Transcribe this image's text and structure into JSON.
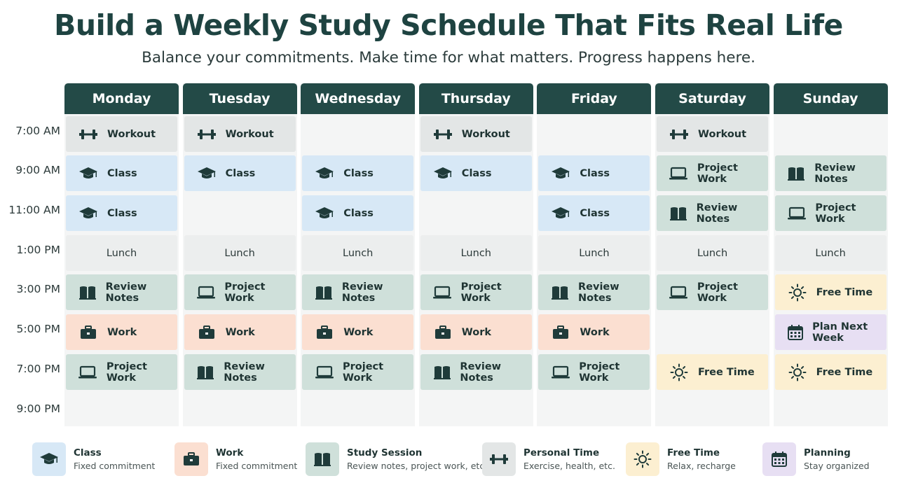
{
  "header": {
    "title": "Build a Weekly Study Schedule That Fits Real Life",
    "subtitle": "Balance your commitments. Make time for what matters. Progress happens here."
  },
  "times": [
    "7:00 AM",
    "9:00 AM",
    "11:00 AM",
    "1:00 PM",
    "3:00 PM",
    "5:00 PM",
    "7:00 PM",
    "9:00 PM"
  ],
  "days": [
    {
      "name": "Monday",
      "slots": [
        {
          "type": "personal",
          "label": "Workout",
          "icon": "dumbbell-icon"
        },
        {
          "type": "class",
          "label": "Class",
          "icon": "graduation-cap-icon"
        },
        {
          "type": "class",
          "label": "Class",
          "icon": "graduation-cap-icon"
        },
        {
          "type": "lunch",
          "label": "Lunch",
          "icon": ""
        },
        {
          "type": "study",
          "label": "Review Notes",
          "icon": "book-icon"
        },
        {
          "type": "work",
          "label": "Work",
          "icon": "briefcase-icon"
        },
        {
          "type": "study",
          "label": "Project Work",
          "icon": "laptop-icon"
        },
        {
          "type": "empty",
          "label": "",
          "icon": ""
        }
      ]
    },
    {
      "name": "Tuesday",
      "slots": [
        {
          "type": "personal",
          "label": "Workout",
          "icon": "dumbbell-icon"
        },
        {
          "type": "class",
          "label": "Class",
          "icon": "graduation-cap-icon"
        },
        {
          "type": "empty",
          "label": "",
          "icon": ""
        },
        {
          "type": "lunch",
          "label": "Lunch",
          "icon": ""
        },
        {
          "type": "study",
          "label": "Project Work",
          "icon": "laptop-icon"
        },
        {
          "type": "work",
          "label": "Work",
          "icon": "briefcase-icon"
        },
        {
          "type": "study",
          "label": "Review Notes",
          "icon": "book-icon"
        },
        {
          "type": "empty",
          "label": "",
          "icon": ""
        }
      ]
    },
    {
      "name": "Wednesday",
      "slots": [
        {
          "type": "empty",
          "label": "",
          "icon": ""
        },
        {
          "type": "class",
          "label": "Class",
          "icon": "graduation-cap-icon"
        },
        {
          "type": "class",
          "label": "Class",
          "icon": "graduation-cap-icon"
        },
        {
          "type": "lunch",
          "label": "Lunch",
          "icon": ""
        },
        {
          "type": "study",
          "label": "Review Notes",
          "icon": "book-icon"
        },
        {
          "type": "work",
          "label": "Work",
          "icon": "briefcase-icon"
        },
        {
          "type": "study",
          "label": "Project Work",
          "icon": "laptop-icon"
        },
        {
          "type": "empty",
          "label": "",
          "icon": ""
        }
      ]
    },
    {
      "name": "Thursday",
      "slots": [
        {
          "type": "personal",
          "label": "Workout",
          "icon": "dumbbell-icon"
        },
        {
          "type": "class",
          "label": "Class",
          "icon": "graduation-cap-icon"
        },
        {
          "type": "empty",
          "label": "",
          "icon": ""
        },
        {
          "type": "lunch",
          "label": "Lunch",
          "icon": ""
        },
        {
          "type": "study",
          "label": "Project Work",
          "icon": "laptop-icon"
        },
        {
          "type": "work",
          "label": "Work",
          "icon": "briefcase-icon"
        },
        {
          "type": "study",
          "label": "Review Notes",
          "icon": "book-icon"
        },
        {
          "type": "empty",
          "label": "",
          "icon": ""
        }
      ]
    },
    {
      "name": "Friday",
      "slots": [
        {
          "type": "empty",
          "label": "",
          "icon": ""
        },
        {
          "type": "class",
          "label": "Class",
          "icon": "graduation-cap-icon"
        },
        {
          "type": "class",
          "label": "Class",
          "icon": "graduation-cap-icon"
        },
        {
          "type": "lunch",
          "label": "Lunch",
          "icon": ""
        },
        {
          "type": "study",
          "label": "Review Notes",
          "icon": "book-icon"
        },
        {
          "type": "work",
          "label": "Work",
          "icon": "briefcase-icon"
        },
        {
          "type": "study",
          "label": "Project Work",
          "icon": "laptop-icon"
        },
        {
          "type": "empty",
          "label": "",
          "icon": ""
        }
      ]
    },
    {
      "name": "Saturday",
      "slots": [
        {
          "type": "personal",
          "label": "Workout",
          "icon": "dumbbell-icon"
        },
        {
          "type": "study",
          "label": "Project Work",
          "icon": "laptop-icon"
        },
        {
          "type": "study",
          "label": "Review Notes",
          "icon": "book-icon"
        },
        {
          "type": "lunch",
          "label": "Lunch",
          "icon": ""
        },
        {
          "type": "study",
          "label": "Project Work",
          "icon": "laptop-icon"
        },
        {
          "type": "empty",
          "label": "",
          "icon": ""
        },
        {
          "type": "free",
          "label": "Free Time",
          "icon": "sun-icon"
        },
        {
          "type": "empty",
          "label": "",
          "icon": ""
        }
      ]
    },
    {
      "name": "Sunday",
      "slots": [
        {
          "type": "empty",
          "label": "",
          "icon": ""
        },
        {
          "type": "study",
          "label": "Review Notes",
          "icon": "book-icon"
        },
        {
          "type": "study",
          "label": "Project Work",
          "icon": "laptop-icon"
        },
        {
          "type": "lunch",
          "label": "Lunch",
          "icon": ""
        },
        {
          "type": "free",
          "label": "Free Time",
          "icon": "sun-icon"
        },
        {
          "type": "plan",
          "label": "Plan Next Week",
          "icon": "calendar-icon"
        },
        {
          "type": "free",
          "label": "Free Time",
          "icon": "sun-icon"
        },
        {
          "type": "empty",
          "label": "",
          "icon": ""
        }
      ]
    }
  ],
  "legend": [
    {
      "type": "class",
      "name": "Class",
      "desc": "Fixed commitment",
      "icon": "graduation-cap-icon"
    },
    {
      "type": "work",
      "name": "Work",
      "desc": "Fixed commitment",
      "icon": "briefcase-icon"
    },
    {
      "type": "study",
      "name": "Study Session",
      "desc": "Review notes, project work, etc.",
      "icon": "book-icon"
    },
    {
      "type": "personal",
      "name": "Personal Time",
      "desc": "Exercise, health, etc.",
      "icon": "dumbbell-icon"
    },
    {
      "type": "free",
      "name": "Free Time",
      "desc": "Relax, recharge",
      "icon": "sun-icon"
    },
    {
      "type": "plan",
      "name": "Planning",
      "desc": "Stay organized",
      "icon": "calendar-icon"
    }
  ],
  "colors": {
    "header": "#234a47",
    "class": "#d7e8f6",
    "work": "#fbdfd1",
    "study": "#cfe0da",
    "personal": "#e3e6e6",
    "free": "#fcefd1",
    "plan": "#e7dff3",
    "icon": "#1f3b3a"
  }
}
